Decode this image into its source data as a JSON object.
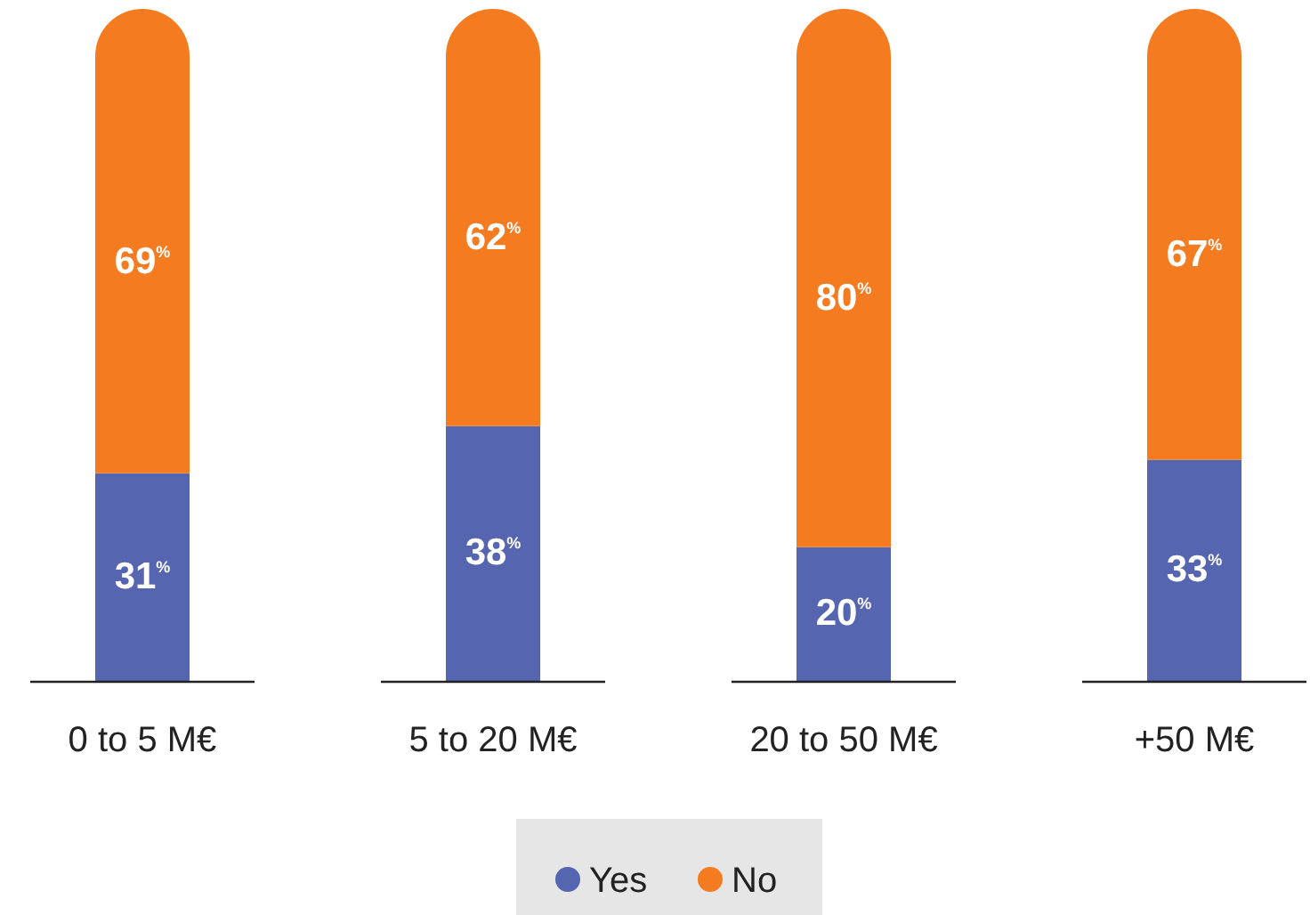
{
  "chart_data": {
    "type": "bar",
    "stacked": true,
    "categories": [
      "0 to 5 M€",
      "5 to 20 M€",
      "20 to 50 M€",
      "+50 M€"
    ],
    "series": [
      {
        "name": "Yes",
        "color": "#5565b0",
        "values": [
          31,
          38,
          20,
          33
        ],
        "value_labels": [
          "31$^{%}$",
          "38$^{%}$",
          "20$^{%}$",
          "33$^{%}$"
        ]
      },
      {
        "name": "No",
        "color": "#f47b20",
        "values": [
          69,
          62,
          80,
          67
        ],
        "value_labels": [
          "69$^{%}$",
          "62$^{%}$",
          "80$^{%}$",
          "67$^{%}$"
        ]
      }
    ],
    "legend": "bottom"
  }
}
